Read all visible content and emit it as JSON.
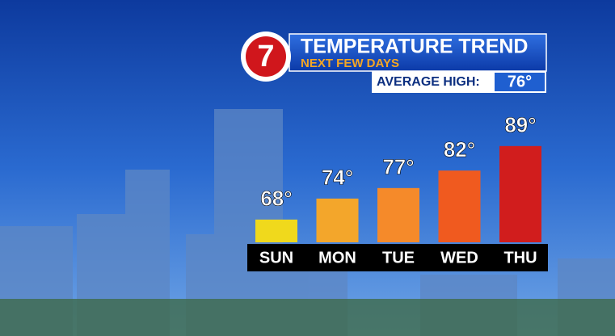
{
  "chart_data": {
    "type": "bar",
    "logo": "7",
    "title": "TEMPERATURE TREND",
    "subtitle": "NEXT FEW DAYS",
    "annotation": {
      "label": "AVERAGE HIGH:",
      "text": "76°"
    },
    "categories": [
      "SUN",
      "MON",
      "TUE",
      "WED",
      "THU"
    ],
    "values": [
      68,
      74,
      77,
      82,
      89
    ],
    "value_labels": [
      "68°",
      "74°",
      "77°",
      "82°",
      "89°"
    ],
    "colors": [
      "#f0d91c",
      "#f3a62b",
      "#f58a2a",
      "#f05a1f",
      "#d11d1d"
    ],
    "ylim": [
      61.5,
      91.5
    ]
  }
}
